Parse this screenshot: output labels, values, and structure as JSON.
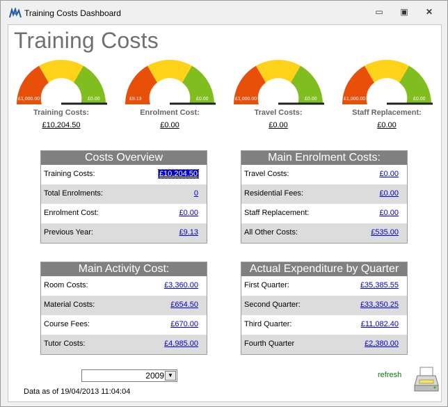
{
  "window": {
    "title": "Training Costs Dashboard",
    "minimize_glyph": "▭",
    "maximize_glyph": "▣",
    "close_glyph": "✕"
  },
  "page": {
    "title": "Training Costs"
  },
  "gauges": [
    {
      "label": "Training Costs:",
      "value": "£10,204.50",
      "scale_min": "£1,000.00",
      "scale_max": "£0.00"
    },
    {
      "label": "Enrolment Cost:",
      "value": "£0.00",
      "scale_min": "£9.13",
      "scale_max": "£0.00"
    },
    {
      "label": "Travel Costs:",
      "value": "£0.00",
      "scale_min": "£1,000.00",
      "scale_max": "£0.00"
    },
    {
      "label": "Staff Replacement:",
      "value": "£0.00",
      "scale_min": "£1,000.00",
      "scale_max": "£0.00"
    }
  ],
  "panels": {
    "costs_overview": {
      "title": "Costs Overview",
      "rows": [
        {
          "label": "Training Costs:",
          "value": "£10,204.50"
        },
        {
          "label": "Total Enrolments:",
          "value": "0"
        },
        {
          "label": "Enrolment Cost:",
          "value": "£0.00"
        },
        {
          "label": "Previous Year:",
          "value": "£9.13"
        }
      ]
    },
    "main_enrolment": {
      "title": "Main Enrolment Costs:",
      "rows": [
        {
          "label": "Travel Costs:",
          "value": "£0.00"
        },
        {
          "label": "Residential Fees:",
          "value": "£0.00"
        },
        {
          "label": "Staff Replacement:",
          "value": "£0.00"
        },
        {
          "label": "All Other Costs:",
          "value": "£535.00"
        }
      ]
    },
    "main_activity": {
      "title": "Main Activity Cost:",
      "rows": [
        {
          "label": "Room Costs:",
          "value": "£3,360.00"
        },
        {
          "label": "Material Costs:",
          "value": "£654.50"
        },
        {
          "label": "Course Fees:",
          "value": "£670.00"
        },
        {
          "label": "Tutor Costs:",
          "value": "£4,985.00"
        }
      ]
    },
    "expenditure_quarter": {
      "title": "Actual Expenditure by Quarter",
      "rows": [
        {
          "label": "First Quarter:",
          "value": "£35,385.55"
        },
        {
          "label": "Second Quarter:",
          "value": "£33,350.25"
        },
        {
          "label": "Third Quarter:",
          "value": "£11,082.40"
        },
        {
          "label": "Fourth Quarter",
          "value": "£2,380.00"
        }
      ]
    }
  },
  "footer": {
    "year": "2009",
    "dropdown_glyph": "▼",
    "data_as_of": "Data as of 19/04/2013 11:04:04",
    "refresh_label": "refresh"
  },
  "colors": {
    "gauge_red": "#e8500a",
    "gauge_yellow": "#ffd21a",
    "gauge_green": "#7fbe1e",
    "panel_header": "#808080",
    "link": "#0000cc"
  },
  "icons": {
    "app": "app-logo-icon",
    "printer": "printer-icon"
  }
}
